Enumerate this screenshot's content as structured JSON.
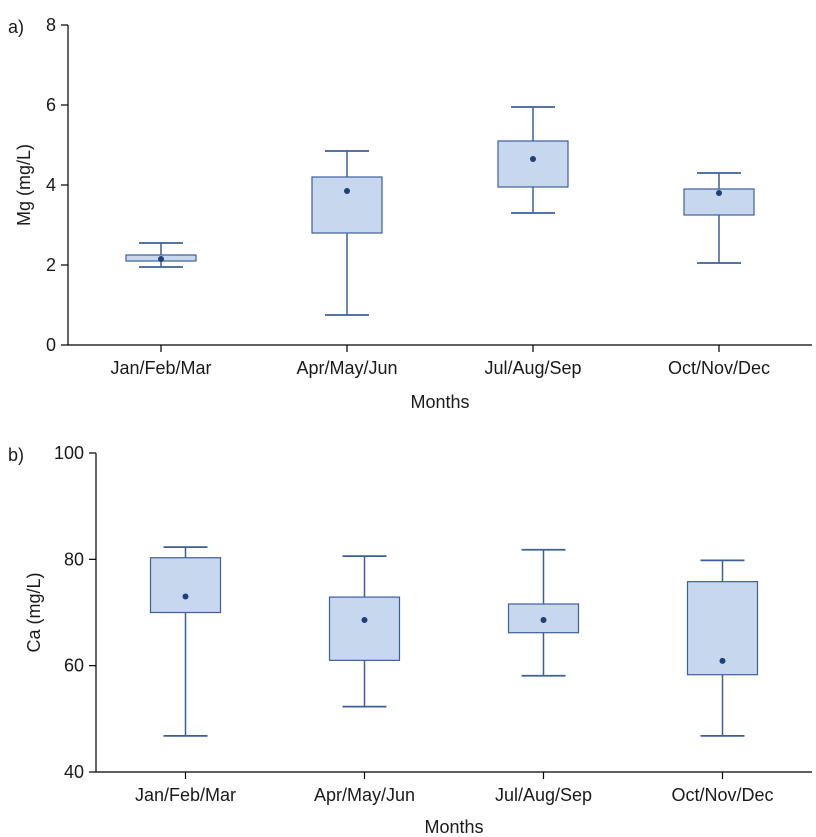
{
  "chart_data": [
    {
      "type": "box",
      "panel_label": "a)",
      "xlabel": "Months",
      "ylabel": "Mg (mg/L)",
      "ylim": [
        0,
        8
      ],
      "yticks": [
        "0",
        "2",
        "4",
        "6",
        "8"
      ],
      "grid": false,
      "categories": [
        "Jan/Feb/Mar",
        "Apr/May/Jun",
        "Jul/Aug/Sep",
        "Oct/Nov/Dec"
      ],
      "boxes": [
        {
          "whisker_low": 1.95,
          "q1": 2.1,
          "q3": 2.25,
          "whisker_high": 2.55,
          "mean": 2.15
        },
        {
          "whisker_low": 0.75,
          "q1": 2.8,
          "q3": 4.2,
          "whisker_high": 4.85,
          "mean": 3.85
        },
        {
          "whisker_low": 3.3,
          "q1": 3.95,
          "q3": 5.1,
          "whisker_high": 5.95,
          "mean": 4.65
        },
        {
          "whisker_low": 2.05,
          "q1": 3.25,
          "q3": 3.9,
          "whisker_high": 4.3,
          "mean": 3.8
        }
      ],
      "colors": {
        "box_fill": "#c6d7ee",
        "stroke": "#3c5f9a",
        "mean_point": "#1f3f7a"
      }
    },
    {
      "type": "box",
      "panel_label": "b)",
      "xlabel": "Months",
      "ylabel": "Ca (mg/L)",
      "ylim": [
        40,
        100
      ],
      "yticks": [
        "40",
        "60",
        "80",
        "100"
      ],
      "grid": false,
      "categories": [
        "Jan/Feb/Mar",
        "Apr/May/Jun",
        "Jul/Aug/Sep",
        "Oct/Nov/Dec"
      ],
      "boxes": [
        {
          "whisker_low": 46.8,
          "q1": 70.0,
          "q3": 80.3,
          "whisker_high": 82.3,
          "mean": 73.0
        },
        {
          "whisker_low": 52.3,
          "q1": 61.0,
          "q3": 72.9,
          "whisker_high": 80.6,
          "mean": 68.6
        },
        {
          "whisker_low": 58.1,
          "q1": 66.2,
          "q3": 71.6,
          "whisker_high": 81.8,
          "mean": 68.6
        },
        {
          "whisker_low": 46.8,
          "q1": 58.3,
          "q3": 75.8,
          "whisker_high": 79.8,
          "mean": 60.9
        }
      ],
      "colors": {
        "box_fill": "#c6d7ee",
        "stroke": "#3c5f9a",
        "mean_point": "#1f3f7a"
      }
    }
  ]
}
